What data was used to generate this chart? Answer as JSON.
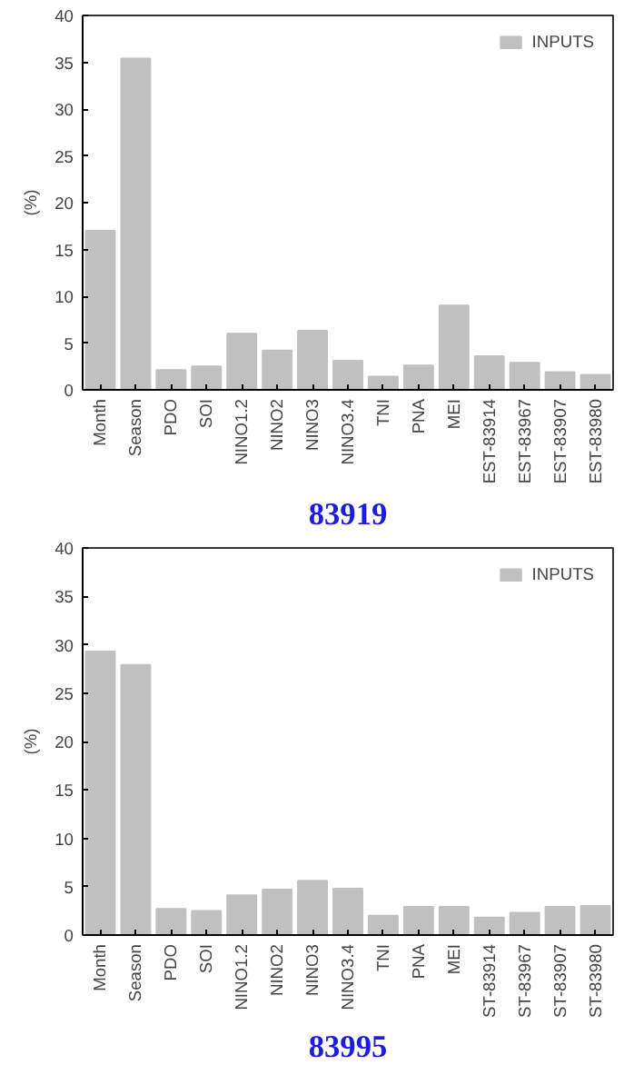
{
  "chart_data": [
    {
      "type": "bar",
      "title": "83919",
      "ylabel": "(%)",
      "categories": [
        "Month",
        "Season",
        "PDO",
        "SOI",
        "NINO1.2",
        "NINO2",
        "NINO3",
        "NINO3.4",
        "TNI",
        "PNA",
        "MEI",
        "EST-83914",
        "EST-83967",
        "EST-83907",
        "EST-83980"
      ],
      "series": [
        {
          "name": "INPUTS",
          "color": "#c0c0c0",
          "values": [
            17,
            35.4,
            2.1,
            2.5,
            6.0,
            4.2,
            6.3,
            3.1,
            1.4,
            2.6,
            9.0,
            3.6,
            2.9,
            1.9,
            1.6
          ]
        }
      ],
      "ylim": [
        0,
        40
      ],
      "yticks": [
        0,
        5,
        10,
        15,
        20,
        25,
        30,
        35,
        40
      ],
      "grid": false,
      "legend": "top right"
    },
    {
      "type": "bar",
      "title": "83995",
      "ylabel": "(%)",
      "categories": [
        "Month",
        "Season",
        "PDO",
        "SOI",
        "NINO1.2",
        "NINO2",
        "NINO3",
        "NINO3.4",
        "TNI",
        "PNA",
        "MEI",
        "ST-83914",
        "ST-83967",
        "ST-83907",
        "ST-83980"
      ],
      "series": [
        {
          "name": "INPUTS",
          "color": "#c0c0c0",
          "values": [
            29.3,
            27.9,
            2.7,
            2.5,
            4.1,
            4.7,
            5.6,
            4.8,
            2.0,
            2.9,
            2.9,
            1.8,
            2.3,
            2.9,
            3.0
          ]
        }
      ],
      "ylim": [
        0,
        40
      ],
      "yticks": [
        0,
        5,
        10,
        15,
        20,
        25,
        30,
        35,
        40
      ],
      "grid": false,
      "legend": "top right"
    }
  ]
}
